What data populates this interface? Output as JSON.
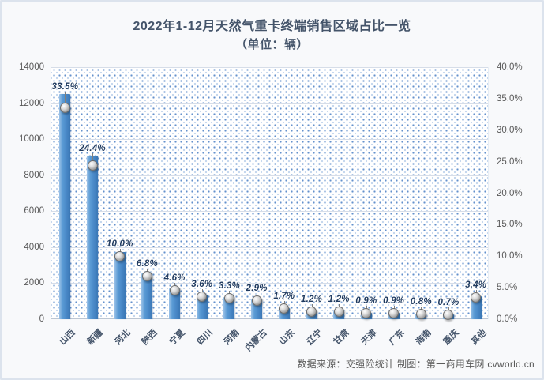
{
  "chart": {
    "title_line1": "2022年1-12月天然气重卡终端销售区域占比一览",
    "title_line2": "（单位：辆）",
    "source_note": "数据来源：交强险统计 制图：第一商用车网 cvworld.cn"
  },
  "chart_data": {
    "type": "bar",
    "subtype": "combo: volume bars (left axis) + share scatter markers (right axis)",
    "title": "2022年1-12月天然气重卡终端销售区域占比一览（单位：辆）",
    "categories": [
      "山西",
      "新疆",
      "河北",
      "陕西",
      "宁夏",
      "四川",
      "河南",
      "内蒙古",
      "山东",
      "辽宁",
      "甘肃",
      "天津",
      "广东",
      "海南",
      "重庆",
      "其他"
    ],
    "series": [
      {
        "name": "终端销量(辆)",
        "type": "bar",
        "axis": "left",
        "values": [
          12490,
          9100,
          3730,
          2535,
          1715,
          1342,
          1230,
          1081,
          634,
          447,
          447,
          336,
          336,
          298,
          261,
          1268
        ]
      },
      {
        "name": "占比(%)",
        "type": "scatter",
        "axis": "right",
        "values": [
          33.5,
          24.4,
          10.0,
          6.8,
          4.6,
          3.6,
          3.3,
          2.9,
          1.7,
          1.2,
          1.2,
          0.9,
          0.9,
          0.8,
          0.7,
          3.4
        ]
      }
    ],
    "data_labels": [
      "33.5%",
      "24.4%",
      "10.0%",
      "6.8%",
      "4.6%",
      "3.6%",
      "3.3%",
      "2.9%",
      "1.7%",
      "1.2%",
      "1.2%",
      "0.9%",
      "0.9%",
      "0.8%",
      "0.7%",
      "3.4%"
    ],
    "left_axis": {
      "min": 0,
      "max": 14000,
      "step": 2000,
      "tick_labels": [
        "0",
        "2000",
        "4000",
        "6000",
        "8000",
        "10000",
        "12000",
        "14000"
      ]
    },
    "right_axis": {
      "min": 0,
      "max": 40,
      "step": 5,
      "tick_labels": [
        "0.0%",
        "5.0%",
        "10.0%",
        "15.0%",
        "20.0%",
        "25.0%",
        "30.0%",
        "35.0%",
        "40.0%"
      ]
    },
    "grid": true,
    "legend": "none",
    "plot_background": "dotted blue pattern on white",
    "colors": {
      "bar": "#4a89c8",
      "bar_light": "#9dc3e8",
      "bar_dark": "#3a77b5",
      "marker_fill": "#b9b9b9",
      "data_label_text": "#1f3a5f",
      "axis_text": "#595959",
      "title_text": "#44546a",
      "gridline": "#d6dde8",
      "plot_dot": "#3e76c0",
      "card_background": "#f8f9fb",
      "card_border": "#dce3ed"
    }
  }
}
